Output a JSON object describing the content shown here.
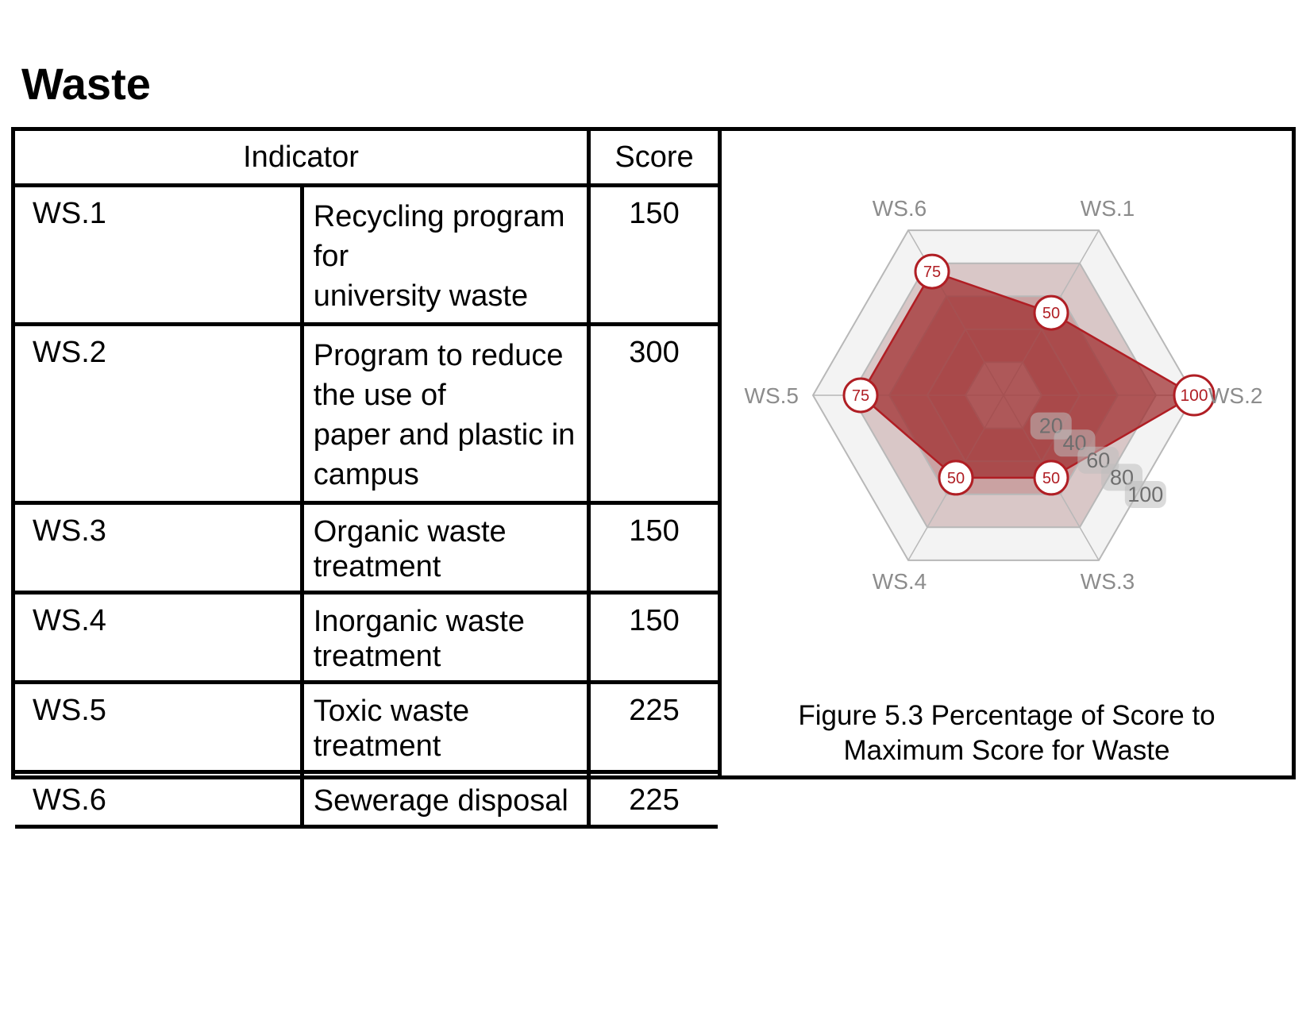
{
  "title": "Waste",
  "table": {
    "header_indicator": "Indicator",
    "header_score": "Score",
    "rows": [
      {
        "code": "WS.1",
        "lines": [
          "Recycling program for",
          "university waste"
        ],
        "score": "150"
      },
      {
        "code": "WS.2",
        "lines": [
          "Program to reduce the use of",
          "paper and plastic in campus"
        ],
        "score": "300"
      },
      {
        "code": "WS.3",
        "lines": [
          "Organic waste treatment"
        ],
        "score": "150"
      },
      {
        "code": "WS.4",
        "lines": [
          "Inorganic waste treatment"
        ],
        "score": "150"
      },
      {
        "code": "WS.5",
        "lines": [
          "Toxic waste treatment"
        ],
        "score": "225"
      },
      {
        "code": "WS.6",
        "lines": [
          "Sewerage disposal"
        ],
        "score": "225"
      }
    ]
  },
  "chart_data": {
    "type": "radar",
    "categories": [
      "WS.1",
      "WS.2",
      "WS.3",
      "WS.4",
      "WS.5",
      "WS.6"
    ],
    "values": [
      50,
      100,
      50,
      50,
      75,
      75
    ],
    "rlim": [
      0,
      100
    ],
    "ticks": [
      20,
      40,
      60,
      80,
      100
    ],
    "colors": {
      "fill": "#9e2a2b",
      "point_border": "#b01e24",
      "grid": "#b8b8b8"
    }
  },
  "caption": {
    "line1": "Figure 5.3 Percentage of Score to",
    "line2": "Maximum Score for Waste"
  }
}
